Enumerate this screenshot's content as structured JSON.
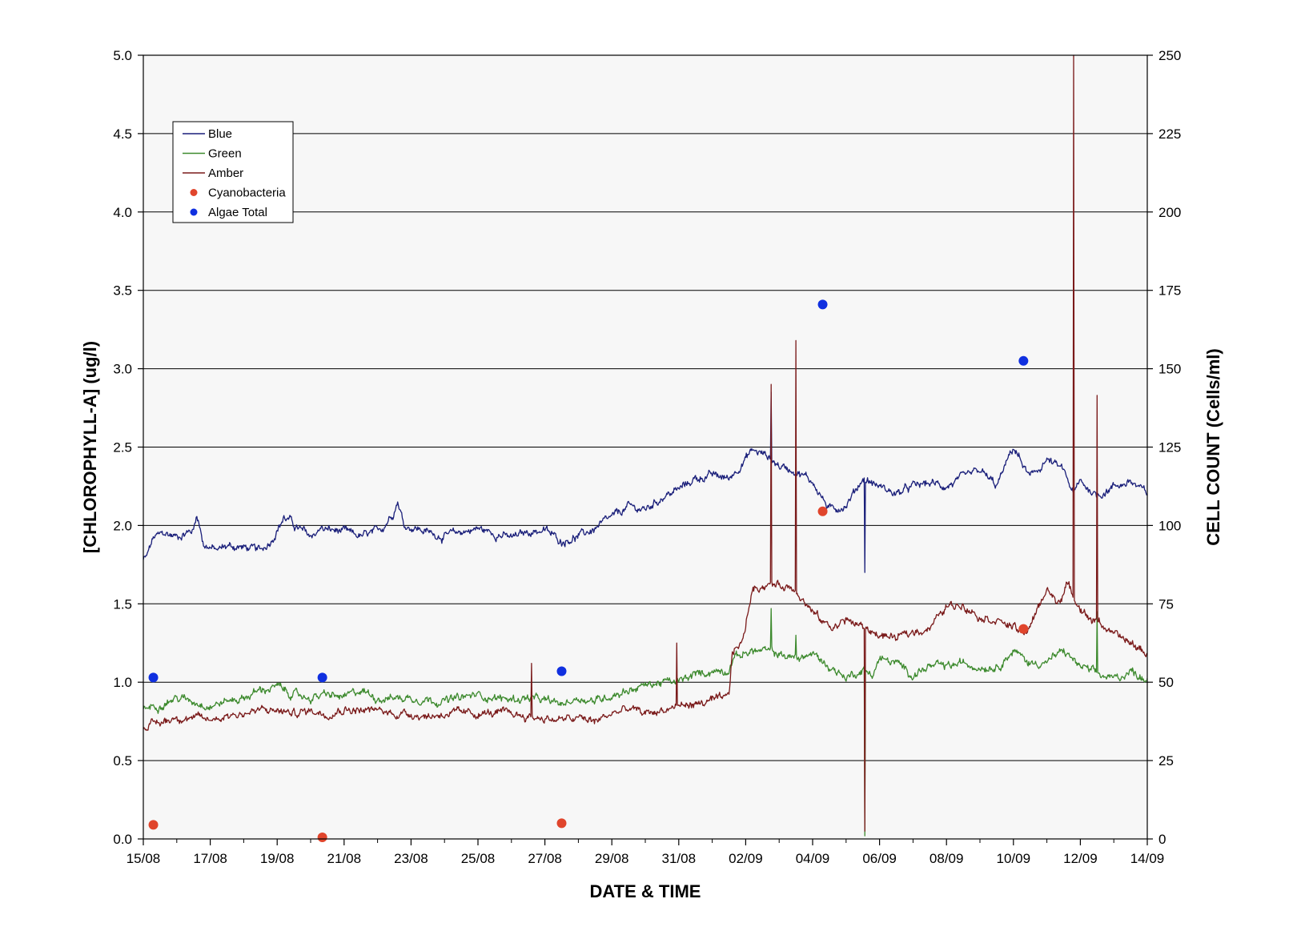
{
  "chart_data": {
    "type": "line",
    "xlabel": "DATE & TIME",
    "ylabel_left": "[CHLOROPHYLL-A] (ug/l)",
    "ylabel_right": "CELL COUNT (Cells/ml)",
    "ylim_left": [
      0,
      5
    ],
    "ylim_right": [
      0,
      250
    ],
    "yticks_left": [
      "0.0",
      "0.5",
      "1.0",
      "1.5",
      "2.0",
      "2.5",
      "3.0",
      "3.5",
      "4.0",
      "4.5",
      "5.0"
    ],
    "yticks_right": [
      "0",
      "25",
      "50",
      "75",
      "100",
      "125",
      "150",
      "175",
      "200",
      "225",
      "250"
    ],
    "xlim_days": [
      0,
      30
    ],
    "xticks": [
      "15/08",
      "17/08",
      "19/08",
      "21/08",
      "23/08",
      "25/08",
      "27/08",
      "29/08",
      "31/08",
      "02/09",
      "04/09",
      "06/09",
      "08/09",
      "10/09",
      "12/09",
      "14/09"
    ],
    "grid": true,
    "legend_position": "top-left",
    "legend": [
      {
        "label": "Blue",
        "kind": "line",
        "color": "#1a1f7a"
      },
      {
        "label": "Green",
        "kind": "line",
        "color": "#3d8a2e"
      },
      {
        "label": "Amber",
        "kind": "line",
        "color": "#7a1a1a"
      },
      {
        "label": "Cyanobacteria",
        "kind": "marker",
        "color": "#e0452c"
      },
      {
        "label": "Algae Total",
        "kind": "marker",
        "color": "#1030e0"
      }
    ],
    "series": [
      {
        "name": "Blue",
        "axis": "left",
        "color": "#1a1f7a",
        "x": [
          0,
          0.1,
          0.3,
          0.6,
          1.0,
          1.5,
          1.6,
          1.8,
          2.2,
          2.5,
          3.0,
          3.5,
          3.8,
          4.2,
          4.4,
          4.5,
          5.0,
          5.3,
          5.6,
          6.0,
          6.5,
          6.9,
          7.2,
          7.5,
          7.6,
          7.8,
          8.2,
          8.6,
          9.0,
          9.5,
          10.0,
          10.5,
          11.0,
          11.5,
          12.0,
          12.5,
          13.0,
          13.5,
          14.0,
          14.5,
          15.0,
          15.5,
          16.0,
          16.5,
          17.0,
          17.5,
          17.9,
          18.2,
          18.6,
          19.0,
          19.5,
          20.0,
          20.5,
          21.0,
          21.5,
          22.0,
          22.5,
          23.0,
          23.5,
          24.0,
          24.5,
          25.0,
          25.5,
          26.0,
          26.5,
          27.0,
          27.5,
          27.8,
          28.0,
          28.5,
          29.0,
          29.5,
          30.0
        ],
        "y": [
          1.78,
          1.8,
          1.92,
          1.95,
          1.93,
          1.97,
          2.08,
          1.88,
          1.84,
          1.87,
          1.86,
          1.84,
          1.9,
          2.05,
          2.03,
          2.0,
          1.93,
          1.98,
          1.97,
          1.96,
          1.93,
          1.95,
          2.0,
          2.1,
          2.16,
          2.0,
          1.98,
          1.95,
          1.93,
          1.96,
          1.98,
          1.95,
          1.92,
          1.96,
          1.97,
          1.9,
          1.93,
          1.98,
          2.05,
          2.12,
          2.1,
          2.18,
          2.23,
          2.3,
          2.32,
          2.3,
          2.4,
          2.48,
          2.45,
          2.38,
          2.35,
          2.28,
          2.1,
          2.13,
          2.3,
          2.25,
          2.2,
          2.25,
          2.27,
          2.25,
          2.3,
          2.35,
          2.25,
          2.5,
          2.3,
          2.42,
          2.35,
          2.2,
          2.28,
          2.19,
          2.25,
          2.28,
          2.2
        ],
        "spikes": [
          {
            "x": 18.75,
            "y": 2.85
          },
          {
            "x": 21.55,
            "y": 1.7
          }
        ]
      },
      {
        "name": "Green",
        "axis": "left",
        "color": "#3d8a2e",
        "x": [
          0,
          0.5,
          1.0,
          1.5,
          2.0,
          2.5,
          3.0,
          3.5,
          4.0,
          4.5,
          5.0,
          5.5,
          6.0,
          6.5,
          7.0,
          7.5,
          8.0,
          8.5,
          9.0,
          9.5,
          10.0,
          10.5,
          11.0,
          11.5,
          12.0,
          12.5,
          13.0,
          13.5,
          14.0,
          14.5,
          15.0,
          15.5,
          16.0,
          16.5,
          17.0,
          17.5,
          17.6,
          17.9,
          18.2,
          18.6,
          19.0,
          19.5,
          20.0,
          20.5,
          21.0,
          21.5,
          21.8,
          22.0,
          22.5,
          23.0,
          23.5,
          24.0,
          24.5,
          25.0,
          25.5,
          26.0,
          26.5,
          27.0,
          27.5,
          28.0,
          28.5,
          29.0,
          29.5,
          30.0
        ],
        "y": [
          0.83,
          0.86,
          0.9,
          0.88,
          0.85,
          0.88,
          0.9,
          0.95,
          0.97,
          0.92,
          0.9,
          0.92,
          0.9,
          0.95,
          0.9,
          0.9,
          0.9,
          0.89,
          0.88,
          0.9,
          0.92,
          0.9,
          0.89,
          0.9,
          0.88,
          0.86,
          0.9,
          0.88,
          0.92,
          0.95,
          0.98,
          1.0,
          1.0,
          1.05,
          1.07,
          1.08,
          1.15,
          1.18,
          1.2,
          1.2,
          1.18,
          1.15,
          1.18,
          1.1,
          1.03,
          1.08,
          1.05,
          1.15,
          1.12,
          1.05,
          1.1,
          1.1,
          1.12,
          1.1,
          1.1,
          1.2,
          1.12,
          1.13,
          1.2,
          1.1,
          1.05,
          1.02,
          1.07,
          1.02
        ],
        "spikes": [
          {
            "x": 18.75,
            "y": 1.47
          },
          {
            "x": 19.5,
            "y": 1.3
          },
          {
            "x": 21.55,
            "y": 0.02
          },
          {
            "x": 28.5,
            "y": 1.45
          }
        ]
      },
      {
        "name": "Amber",
        "axis": "left",
        "color": "#7a1a1a",
        "x": [
          0,
          0.5,
          1.0,
          1.5,
          2.0,
          2.5,
          3.0,
          3.5,
          4.0,
          4.5,
          5.0,
          5.5,
          6.0,
          6.5,
          7.0,
          7.5,
          8.0,
          8.5,
          9.0,
          9.5,
          10.0,
          10.5,
          11.0,
          11.5,
          12.0,
          12.5,
          13.0,
          13.5,
          14.0,
          14.5,
          15.0,
          15.5,
          16.0,
          16.5,
          17.0,
          17.5,
          17.6,
          17.9,
          18.2,
          18.6,
          19.0,
          19.5,
          19.8,
          20.2,
          20.6,
          21.0,
          21.5,
          22.0,
          22.5,
          23.0,
          23.5,
          24.0,
          24.5,
          25.0,
          25.5,
          26.0,
          26.3,
          26.6,
          27.0,
          27.3,
          27.6,
          28.0,
          28.3,
          28.6,
          29.0,
          29.5,
          30.0
        ],
        "y": [
          0.72,
          0.74,
          0.78,
          0.77,
          0.76,
          0.79,
          0.8,
          0.82,
          0.82,
          0.8,
          0.82,
          0.8,
          0.83,
          0.82,
          0.82,
          0.8,
          0.8,
          0.78,
          0.8,
          0.8,
          0.8,
          0.8,
          0.8,
          0.78,
          0.77,
          0.76,
          0.77,
          0.75,
          0.8,
          0.83,
          0.8,
          0.82,
          0.85,
          0.86,
          0.88,
          0.9,
          1.2,
          1.25,
          1.6,
          1.62,
          1.62,
          1.6,
          1.5,
          1.4,
          1.35,
          1.4,
          1.35,
          1.3,
          1.28,
          1.32,
          1.35,
          1.48,
          1.5,
          1.42,
          1.4,
          1.35,
          1.3,
          1.4,
          1.6,
          1.5,
          1.62,
          1.48,
          1.4,
          1.38,
          1.3,
          1.25,
          1.18
        ],
        "spikes": [
          {
            "x": 11.6,
            "y": 1.12
          },
          {
            "x": 15.95,
            "y": 1.25
          },
          {
            "x": 18.75,
            "y": 2.9
          },
          {
            "x": 19.5,
            "y": 3.18
          },
          {
            "x": 21.55,
            "y": 0.05
          },
          {
            "x": 27.8,
            "y": 5.0
          },
          {
            "x": 28.5,
            "y": 2.83
          }
        ]
      }
    ],
    "markers": [
      {
        "name": "Cyanobacteria",
        "axis": "right",
        "color": "#e0452c",
        "x": [
          0.3,
          5.35,
          12.5,
          20.3,
          26.3
        ],
        "y": [
          4.5,
          0.5,
          5.0,
          104.5,
          67.0
        ]
      },
      {
        "name": "Algae Total",
        "axis": "right",
        "color": "#1030e0",
        "x": [
          0.3,
          5.35,
          12.5,
          20.3,
          26.3
        ],
        "y": [
          51.5,
          51.5,
          53.5,
          170.5,
          152.5
        ]
      }
    ]
  }
}
